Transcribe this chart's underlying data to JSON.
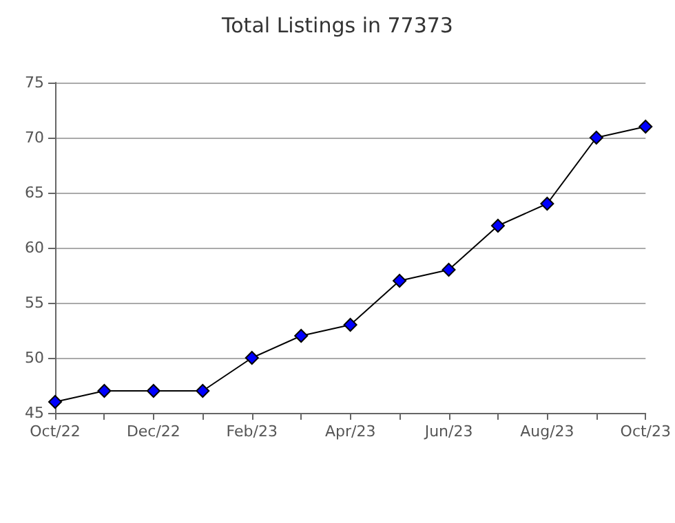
{
  "chart_data": {
    "type": "line",
    "title": "Total Listings in 77373",
    "categories": [
      "Oct/22",
      null,
      "Dec/22",
      null,
      "Feb/23",
      null,
      "Apr/23",
      null,
      "Jun/23",
      null,
      "Aug/23",
      null,
      "Oct/23"
    ],
    "values": [
      46,
      47,
      47,
      47,
      50,
      52,
      53,
      57,
      58,
      62,
      64,
      70,
      71
    ],
    "color": "#0000ff",
    "marker": "diamond",
    "ylim": [
      45,
      75
    ],
    "yticks": [
      45,
      50,
      55,
      60,
      65,
      70,
      75
    ],
    "grid": "y"
  }
}
